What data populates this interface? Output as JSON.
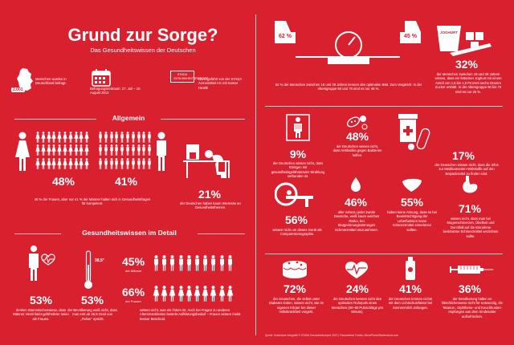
{
  "header": {
    "title": "Grund zur Sorge?",
    "subtitle": "Das Gesundheitswissen der Deutschen"
  },
  "facts": {
    "germany_badge": "2.001",
    "people_text": "Menschen wurden in Deutschland befragt.",
    "date_text": "Befragungszeitraum: 27. Juli – 10. August 2013",
    "stada_badge": "STADA GESUNDHEITSREPORT",
    "stada_text": "Durchgeführt von der STADA Arzneimittel AG mit Kantar Health"
  },
  "allgemein": {
    "heading": "Allgemein",
    "women_pct": "48%",
    "men_pct": "41%",
    "women_men_text": "48 % der Frauen, aber nur 41 % der Männer halten sich in Gesundheitsfragen für kompetent.",
    "desk_pct": "21%",
    "desk_text": "der Deutschen haben kaum Interesse an Gesundheitsthemen."
  },
  "detail": {
    "heading": "Gesundheitswissen im Detail",
    "heart_pct": "53%",
    "heart_text": "denken Stammischenwiese, dass Männer Herzinfarkt-gefährdeter seien als Frauen.",
    "thermo_value": "38,5°",
    "thermo_pct": "53%",
    "thermo_text": "der Bevölkerung weiß nicht, dass man erst ab 38,5 Grad von „Fieber“ spricht.",
    "people_45_pct": "45%",
    "people_45_label": "der Männer",
    "people_66_pct": "66%",
    "people_66_label": "der Frauen",
    "people_text": "wissen nicht, was ein Ödem ist. Auch bei Fragen zu anderen Alterskrankheiten besteht Aufklärungsbedarf – Frauen wissen meist besser Bescheid."
  },
  "right_top": {
    "scale_left_pct": "62 %",
    "scale_right_pct": "45 %",
    "scale_text": "62 % der Menschen zwischen 18 und 29 Jahren kennen den optimalen BMI. Zum Vergleich: In der Altersgruppe 60 und 70 sind es nur 45 %.",
    "yoghurt_label": "JOGHURT",
    "yoghurt_pct": "32%",
    "yoghurt_text": "der Menschen zwischen 18 und 29 Jahren wissen, dass ein fettarmer Joghurt mit einem Anteil von 1,5 bis 1,8 Prozent sechs Gramm Zucker enthält. In der Altersgruppe 60 bis 70 sind es nur 25 %."
  },
  "grid": {
    "xray_pct": "9%",
    "xray_text": "der Deutschen wissen nicht, dass Röntgen mit gesundheitsgefährdender Strahlung verbunden ist.",
    "bact_pct": "48%",
    "bact_text": "der Deutschen wissen nicht, dass Antibiotika gegen Bakterien helfen.",
    "pill_pct": "17%",
    "pill_text": "der Deutschen wissen nicht, dass die Infos zur Medikamenten-Wirkstoffe auf den Beipackzettel zu finden sind.",
    "mri_pct": "56%",
    "mri_text": "wissen nicht um dieses Gerät als Computertomographie.",
    "drop_pct": "46%",
    "drop_text": "aller nahezu jeder zweite Deutsche, weiß kaum welches Risiko, bei Blutgerinnungsstörungen Schmerzmittel einzunehmen.",
    "liver_pct": "55%",
    "liver_text": "haben keine Ahnung, dass es bei Beeinträchtigung der Leberfunktion keine Schmerzmittel einnehmen sollten.",
    "stomach_pct": "71%",
    "stomach_text": "wissen nicht, dass man bei Magenschmerzen, Übelkeit und Durchfall auf die Einnahme bestimmter Schmerzmittel verzichten sollte.",
    "cake_pct": "72%",
    "cake_text": "der Deutschen, die selbst unter Diabetes leiden, wissen nicht, wie im eigenen Körper bei dieser Volkskrankheit vorgeht.",
    "heart2_pct": "24%",
    "heart2_text": "der Deutschen kennen nicht den optimalen Ruhepuls eines Menschen (60–80 Pulsschläge pro Minute).",
    "sun_pct": "41%",
    "sun_text": "der Deutschen können nichts mit dem Lichtschutzfaktor bei Sonnenmilch anfangen.",
    "syringe_pct": "36%",
    "syringe_text": "der Bevölkerung halten es fälschlicherweise nicht für notwendig, die Tetanus-, Diphtherie- und Keuchhusten-Impfungen aus dem Kindesalter aufzufrischen."
  },
  "footer": "Quelle: Kostenlose Infografik © STADA Gesundheitsreport 2013 | Fotomaterial: Fotolia, iStockPhoto/Shutterstock.com"
}
